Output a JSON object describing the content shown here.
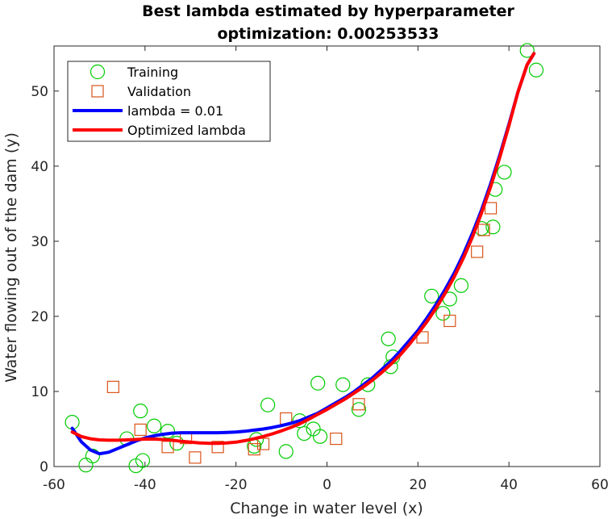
{
  "chart_data": {
    "type": "scatter",
    "title_line1": "Best lambda estimated by hyperparameter",
    "title_line2": "optimization: 0.00253533",
    "xlabel": "Change in water level (x)",
    "ylabel": "Water flowing out of the dam (y)",
    "xlim": [
      -60,
      60
    ],
    "ylim": [
      0,
      56
    ],
    "xticks": [
      -60,
      -40,
      -20,
      0,
      20,
      40,
      60
    ],
    "yticks": [
      0,
      10,
      20,
      30,
      40,
      50
    ],
    "grid": false,
    "legend_position": "top-left",
    "colors": {
      "training": "#00cc00",
      "validation": "#d95319",
      "lambda_001": "#0000ff",
      "optimized": "#ff0000",
      "axis": "#262626"
    },
    "series": [
      {
        "name": "Training",
        "marker": "circle",
        "points": [
          [
            -56,
            5.9
          ],
          [
            -53,
            0.2
          ],
          [
            -51.5,
            1.4
          ],
          [
            -44,
            3.7
          ],
          [
            -42,
            0.1
          ],
          [
            -41,
            7.4
          ],
          [
            -40.5,
            0.8
          ],
          [
            -38,
            5.4
          ],
          [
            -35,
            4.7
          ],
          [
            -33,
            3.1
          ],
          [
            -16,
            2.7
          ],
          [
            -15.5,
            3.6
          ],
          [
            -13,
            8.2
          ],
          [
            -9,
            2.0
          ],
          [
            -6,
            6.1
          ],
          [
            -5,
            4.4
          ],
          [
            -3,
            5.0
          ],
          [
            -2,
            11.1
          ],
          [
            -1.5,
            4.0
          ],
          [
            3.5,
            10.9
          ],
          [
            7,
            7.6
          ],
          [
            9,
            10.9
          ],
          [
            13.5,
            17.0
          ],
          [
            14,
            13.3
          ],
          [
            14.5,
            14.6
          ],
          [
            23,
            22.7
          ],
          [
            25.5,
            20.4
          ],
          [
            27,
            22.3
          ],
          [
            29.5,
            24.1
          ],
          [
            34,
            31.7
          ],
          [
            36.5,
            31.9
          ],
          [
            37,
            36.9
          ],
          [
            39,
            39.2
          ],
          [
            44,
            55.4
          ],
          [
            46,
            52.8
          ]
        ]
      },
      {
        "name": "Validation",
        "marker": "square",
        "points": [
          [
            -47,
            10.6
          ],
          [
            -41,
            4.9
          ],
          [
            -35,
            2.6
          ],
          [
            -31,
            3.8
          ],
          [
            -29,
            1.2
          ],
          [
            -24,
            2.6
          ],
          [
            -16,
            2.3
          ],
          [
            -14,
            3.0
          ],
          [
            -9,
            6.4
          ],
          [
            2,
            3.7
          ],
          [
            7,
            8.3
          ],
          [
            21,
            17.2
          ],
          [
            27,
            19.4
          ],
          [
            33,
            28.6
          ],
          [
            34.5,
            31.5
          ],
          [
            36,
            34.4
          ]
        ]
      },
      {
        "name": "lambda = 0.01",
        "type": "line",
        "x": [
          -56,
          -54,
          -52,
          -50,
          -48,
          -46,
          -44,
          -42,
          -40,
          -38,
          -36,
          -34,
          -32,
          -30,
          -28,
          -26,
          -24,
          -22,
          -20,
          -18,
          -16,
          -14,
          -12,
          -10,
          -8,
          -6,
          -4,
          -2,
          0,
          2,
          4,
          6,
          8,
          10,
          12,
          14,
          16,
          18,
          20,
          22,
          24,
          26,
          28,
          30,
          32,
          34,
          36,
          38,
          40,
          42,
          44,
          45.5
        ],
        "y": [
          5.1,
          3.3,
          2.2,
          1.7,
          1.9,
          2.4,
          2.9,
          3.4,
          3.8,
          4.1,
          4.3,
          4.45,
          4.5,
          4.5,
          4.5,
          4.5,
          4.5,
          4.55,
          4.6,
          4.7,
          4.85,
          5.0,
          5.2,
          5.45,
          5.75,
          6.1,
          6.6,
          7.1,
          7.8,
          8.5,
          9.2,
          10.0,
          10.9,
          11.8,
          12.9,
          14.0,
          15.3,
          16.7,
          18.1,
          19.8,
          21.6,
          23.6,
          25.8,
          28.3,
          31.1,
          34.2,
          37.7,
          41.5,
          45.6,
          49.9,
          53.5,
          55.0
        ]
      },
      {
        "name": "Optimized lambda",
        "type": "line",
        "x": [
          -56,
          -54,
          -52,
          -50,
          -48,
          -46,
          -44,
          -42,
          -40,
          -38,
          -36,
          -34,
          -32,
          -30,
          -28,
          -26,
          -24,
          -22,
          -20,
          -18,
          -16,
          -14,
          -12,
          -10,
          -8,
          -6,
          -4,
          -2,
          0,
          2,
          4,
          6,
          8,
          10,
          12,
          14,
          16,
          18,
          20,
          22,
          24,
          26,
          28,
          30,
          32,
          34,
          36,
          38,
          40,
          42,
          44,
          45.5
        ],
        "y": [
          4.6,
          4.0,
          3.7,
          3.55,
          3.5,
          3.5,
          3.55,
          3.6,
          3.65,
          3.65,
          3.6,
          3.5,
          3.35,
          3.25,
          3.15,
          3.1,
          3.1,
          3.15,
          3.25,
          3.45,
          3.7,
          4.0,
          4.35,
          4.75,
          5.2,
          5.7,
          6.3,
          6.95,
          7.6,
          8.3,
          9.0,
          9.8,
          10.6,
          11.5,
          12.5,
          13.6,
          14.8,
          16.2,
          17.7,
          19.3,
          21.1,
          23.1,
          25.3,
          27.8,
          30.6,
          33.8,
          37.3,
          41.2,
          45.4,
          49.9,
          53.5,
          55.0
        ]
      }
    ]
  }
}
